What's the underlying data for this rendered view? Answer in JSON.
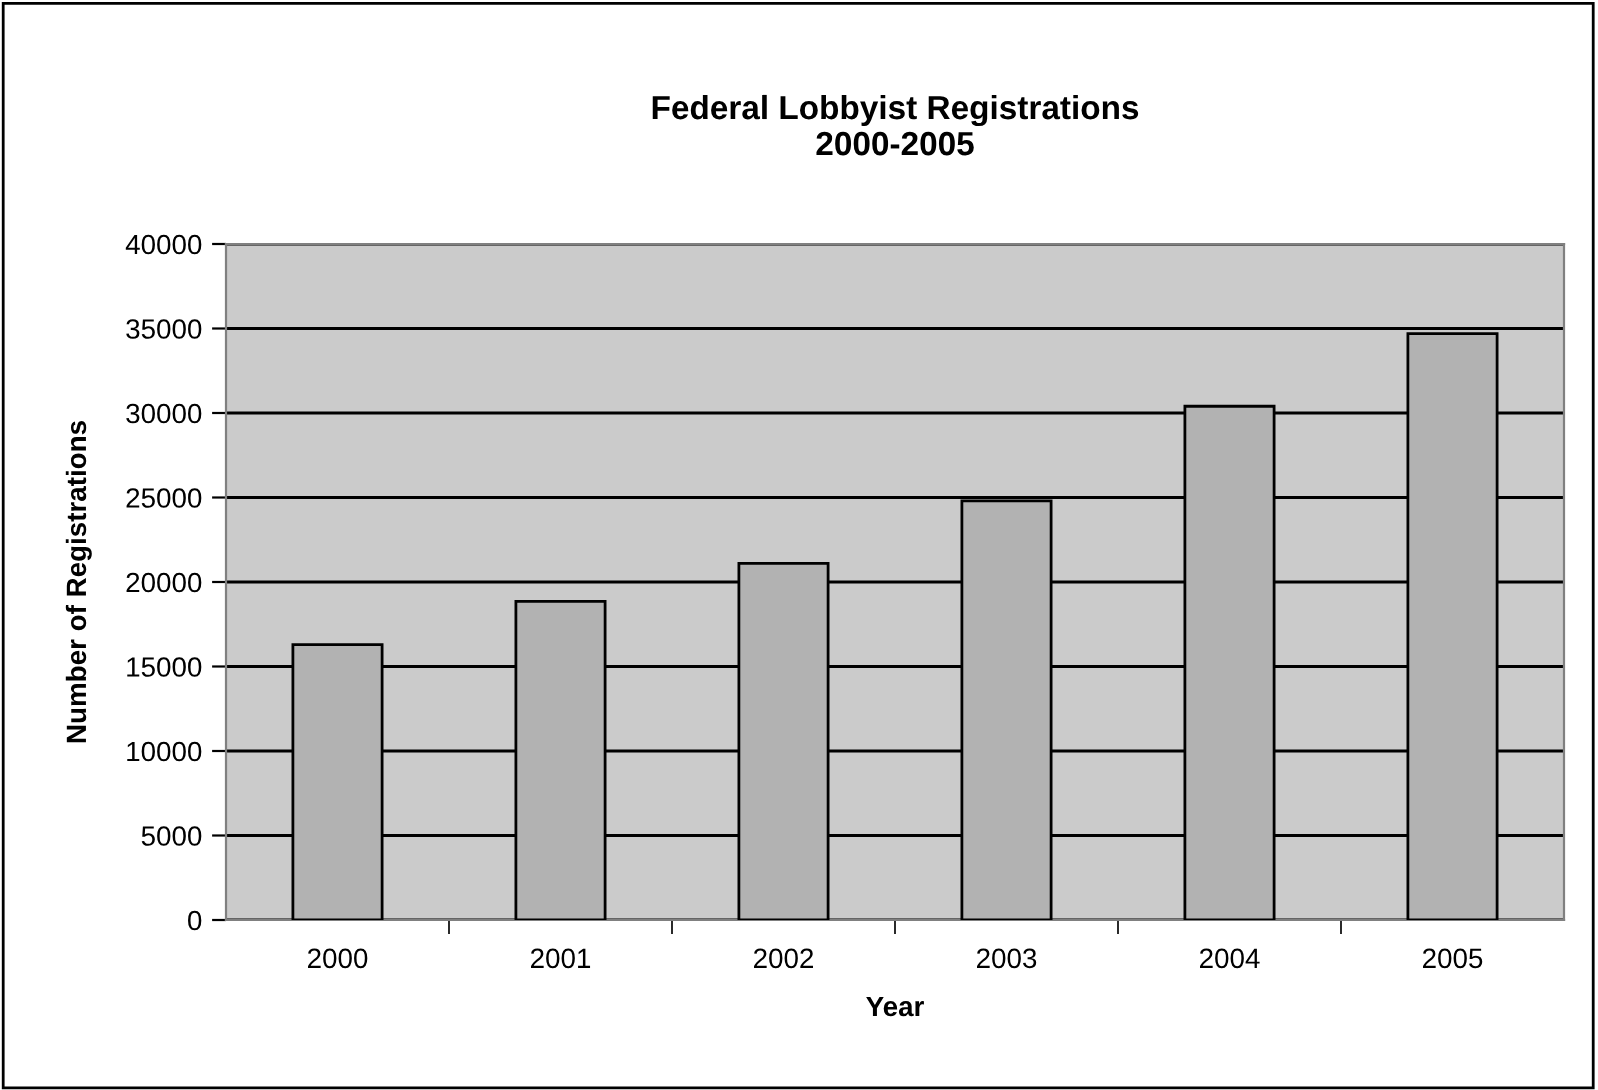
{
  "chart_data": {
    "type": "bar",
    "title": "Federal Lobbyist Registrations\n2000-2005",
    "xlabel": "Year",
    "ylabel": "Number of Registrations",
    "categories": [
      "2000",
      "2001",
      "2002",
      "2003",
      "2004",
      "2005"
    ],
    "values": [
      16300,
      18850,
      21100,
      24800,
      30400,
      34700
    ],
    "color": "#b2b2b2",
    "ylim": [
      0,
      40000
    ],
    "yticks": [
      0,
      5000,
      10000,
      15000,
      20000,
      25000,
      30000,
      35000,
      40000
    ],
    "grid": "y"
  }
}
